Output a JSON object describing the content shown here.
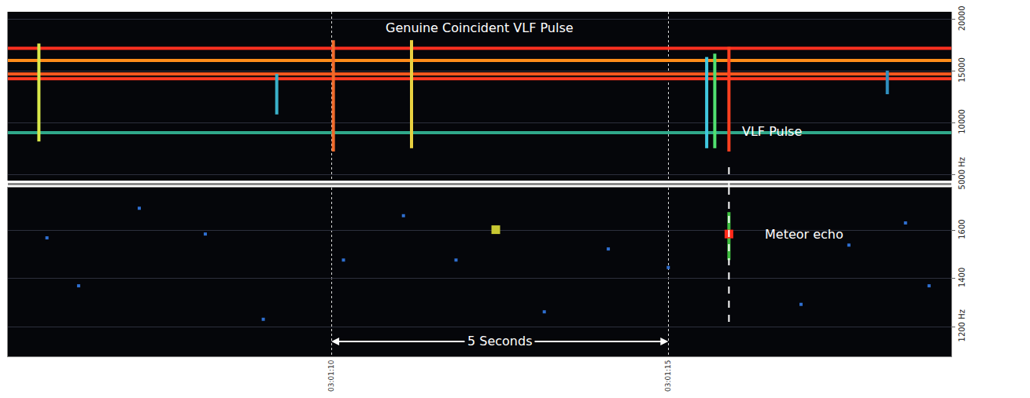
{
  "chart_data": {
    "type": "spectrogram",
    "grid": true,
    "xlim": [
      5.2,
      19.2
    ],
    "xticks": [
      {
        "value": 10,
        "label": "03:01:10"
      },
      {
        "value": 15,
        "label": "03:01:15"
      }
    ],
    "ylim": [
      1077,
      1778
    ],
    "yticks": [
      {
        "value": 1200,
        "label": "1200 Hz"
      },
      1400,
      1600
    ],
    "y2lim": [
      4400,
      20750
    ],
    "y2ticks": [
      {
        "value": 5000,
        "label": "5000 Hz"
      },
      10000,
      15000,
      20000
    ],
    "carriers": [
      {
        "freq": 17218,
        "color": "#ff3020"
      },
      {
        "freq": 16041,
        "color": "#ff8c1a"
      },
      {
        "freq": 14733,
        "color": "#ff5a1f"
      },
      {
        "freq": 14275,
        "color": "#ff3a20"
      },
      {
        "freq": 9043,
        "color": "#2fa88a"
      }
    ],
    "pulses": [
      {
        "time": 5.66,
        "f_low": 8193,
        "f_high": 17676,
        "color": "#d9e84a"
      },
      {
        "time": 9.19,
        "f_low": 10810,
        "f_high": 14733,
        "color": "#3ab0c8"
      },
      {
        "time": 10.03,
        "f_low": 7213,
        "f_high": 18003,
        "color": "#f06a2a"
      },
      {
        "time": 11.19,
        "f_low": 7540,
        "f_high": 18003,
        "color": "#e8d040"
      },
      {
        "time": 15.57,
        "f_low": 7540,
        "f_high": 16368,
        "color": "#40c8e0"
      },
      {
        "time": 15.69,
        "f_low": 7540,
        "f_high": 16695,
        "color": "#50e070"
      },
      {
        "time": 15.9,
        "f_low": 7213,
        "f_high": 17349,
        "color": "#ff4020"
      },
      {
        "time": 18.25,
        "f_low": 12771,
        "f_high": 15060,
        "color": "#3090c0"
      }
    ],
    "echoes": [
      {
        "time": 12.44,
        "freq": 1603,
        "f_low": 1595,
        "f_high": 1610,
        "color": "#4fc84f",
        "core_color": "#c8c832"
      },
      {
        "time": 15.9,
        "freq": 1585,
        "f_low": 1477,
        "f_high": 1676,
        "color": "#40c040",
        "core_color": "#ff2a1a"
      }
    ],
    "noise": {
      "x": [
        5.78,
        6.25,
        7.15,
        8.13,
        8.99,
        10.18,
        11.07,
        11.85,
        13.16,
        14.11,
        15.0,
        16.97,
        17.68,
        18.52,
        18.87
      ],
      "y": [
        1569,
        1370,
        1692,
        1585,
        1231,
        1477,
        1661,
        1477,
        1262,
        1523,
        1446,
        1293,
        1539,
        1631,
        1370
      ],
      "color": "#2f6fd0"
    },
    "annotations": [
      {
        "text": "Genuine Coincident VLF Pulse",
        "x": 10.78,
        "y": 19180,
        "axis": "y2"
      },
      {
        "text": "VLF Pulse",
        "x": 16.07,
        "y": 9174,
        "axis": "y2"
      },
      {
        "text": "Meteor echo",
        "x": 16.41,
        "y": 1585,
        "axis": "y"
      }
    ],
    "span": {
      "text": "5 Seconds",
      "from": 10,
      "to": 15,
      "y": 1139
    },
    "coincidence": {
      "time": 15.9,
      "f_upper": 5700,
      "f_lower": 1200
    }
  }
}
